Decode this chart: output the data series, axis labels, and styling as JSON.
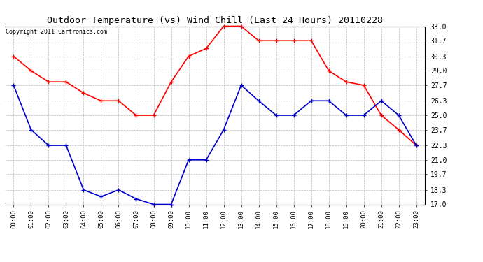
{
  "title": "Outdoor Temperature (vs) Wind Chill (Last 24 Hours) 20110228",
  "copyright": "Copyright 2011 Cartronics.com",
  "hours": [
    "00:00",
    "01:00",
    "02:00",
    "03:00",
    "04:00",
    "05:00",
    "06:00",
    "07:00",
    "08:00",
    "09:00",
    "10:00",
    "11:00",
    "12:00",
    "13:00",
    "14:00",
    "15:00",
    "16:00",
    "17:00",
    "18:00",
    "19:00",
    "20:00",
    "21:00",
    "22:00",
    "23:00"
  ],
  "red_temp": [
    30.3,
    29.0,
    28.0,
    28.0,
    27.0,
    26.3,
    26.3,
    25.0,
    25.0,
    28.0,
    30.3,
    31.0,
    33.0,
    33.0,
    31.7,
    31.7,
    31.7,
    31.7,
    29.0,
    28.0,
    27.7,
    25.0,
    23.7,
    22.3
  ],
  "blue_wc": [
    27.7,
    23.7,
    22.3,
    22.3,
    18.3,
    17.7,
    18.3,
    17.5,
    17.0,
    17.0,
    21.0,
    21.0,
    23.7,
    27.7,
    26.3,
    25.0,
    25.0,
    26.3,
    26.3,
    25.0,
    25.0,
    26.3,
    25.0,
    22.3
  ],
  "ylim": [
    17.0,
    33.0
  ],
  "yticks": [
    17.0,
    18.3,
    19.7,
    21.0,
    22.3,
    23.7,
    25.0,
    26.3,
    27.7,
    29.0,
    30.3,
    31.7,
    33.0
  ],
  "red_color": "#ff0000",
  "blue_color": "#0000cc",
  "marker": "+",
  "marker_size": 5,
  "marker_edge_width": 1.0,
  "line_width": 1.2,
  "grid_color": "#bbbbbb",
  "bg_color": "#ffffff",
  "title_fontsize": 9.5,
  "copyright_fontsize": 6,
  "tick_fontsize": 6.5,
  "ytick_fontsize": 7
}
